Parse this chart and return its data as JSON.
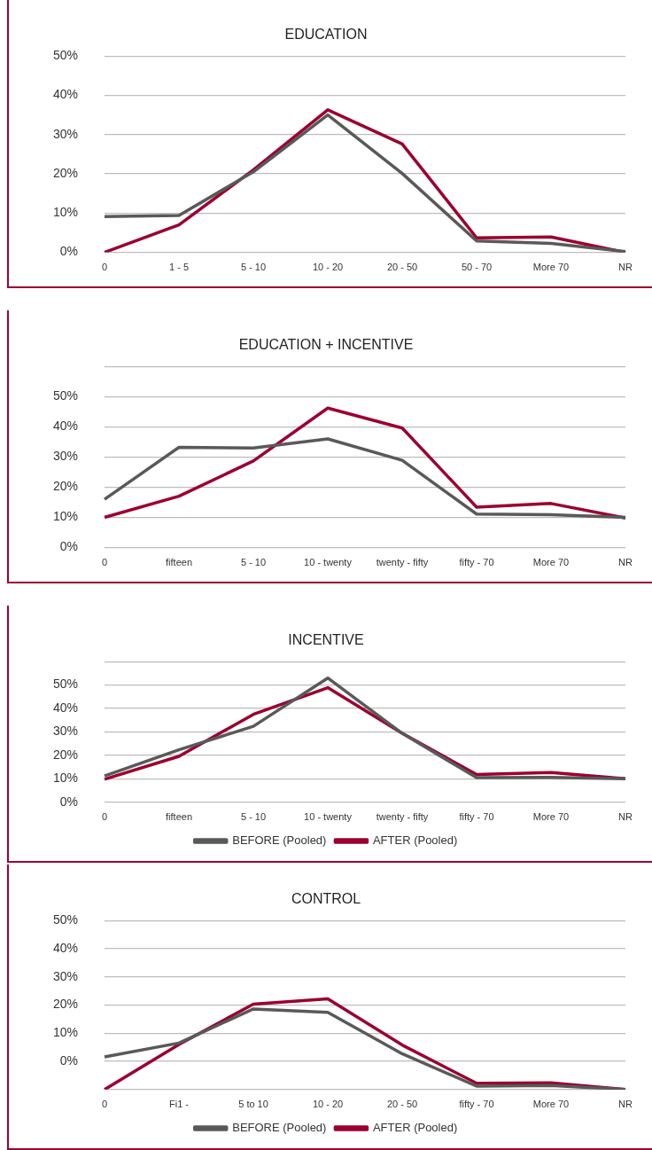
{
  "chart_data": [
    {
      "type": "line",
      "title": "EDUCATION",
      "categories": [
        "0",
        "1 - 5",
        "5 - 10",
        "10 - 20",
        "20 - 50",
        "50 - 70",
        "More 70",
        "NR"
      ],
      "series": [
        {
          "color": "#595959",
          "values": [
            9.1,
            9.4,
            20.5,
            35,
            20.1,
            2.9,
            2.3,
            0.2
          ]
        },
        {
          "color": "#9b0030",
          "values": [
            0,
            7,
            21,
            36.3,
            27.6,
            3.7,
            3.9,
            0
          ]
        }
      ],
      "ylim": [
        0,
        50
      ],
      "yticks": [
        {
          "value": 0,
          "label": "0%"
        },
        {
          "value": 10,
          "label": "10%"
        },
        {
          "value": 20,
          "label": "20%"
        },
        {
          "value": 30,
          "label": "30%"
        },
        {
          "value": 40,
          "label": "40%"
        },
        {
          "value": 50,
          "label": "50%"
        }
      ],
      "grid": "y",
      "legend": false,
      "marker": "none",
      "line_style": "solid"
    },
    {
      "type": "line",
      "title": "EDUCATION + INCENTIVE",
      "categories": [
        "0",
        "fifteen",
        "5 - 10",
        "10 - twenty",
        "twenty - fifty",
        "fifty - 70",
        "More 70",
        "NR"
      ],
      "series": [
        {
          "color": "#595959",
          "values": [
            16,
            33.2,
            33,
            36,
            28.9,
            11.1,
            10.9,
            10
          ]
        },
        {
          "color": "#9b0030",
          "values": [
            10,
            17,
            28.7,
            46.2,
            39.6,
            13.4,
            14.6,
            9.8
          ]
        }
      ],
      "ylim": [
        0,
        60
      ],
      "yticks": [
        {
          "value": 0,
          "label": "0%"
        },
        {
          "value": 10,
          "label": "10%"
        },
        {
          "value": 20,
          "label": "20%"
        },
        {
          "value": 30,
          "label": "30%"
        },
        {
          "value": 40,
          "label": "40%"
        },
        {
          "value": 50,
          "label": "50%"
        },
        {
          "value": 60,
          "label": null
        }
      ],
      "grid": "y",
      "legend": false,
      "marker": "none",
      "line_style": "solid"
    },
    {
      "type": "line",
      "title": "INCENTIVE",
      "categories": [
        "0",
        "fifteen",
        "5 - 10",
        "10 - twenty",
        "twenty - fifty",
        "fifty - 70",
        "More 70",
        "NR"
      ],
      "series": [
        {
          "name": "BEFORE (Pooled)",
          "color": "#595959",
          "values": [
            11.2,
            22.4,
            32.4,
            53,
            29.4,
            10.5,
            10.6,
            10
          ]
        },
        {
          "name": "AFTER (Pooled)",
          "color": "#9b0030",
          "values": [
            9.8,
            19.6,
            37.5,
            48.9,
            29.4,
            11.8,
            12.7,
            10
          ]
        }
      ],
      "ylim": [
        0,
        60
      ],
      "yticks": [
        {
          "value": 0,
          "label": "0%"
        },
        {
          "value": 10,
          "label": "10%"
        },
        {
          "value": 20,
          "label": "20%"
        },
        {
          "value": 30,
          "label": "30%"
        },
        {
          "value": 40,
          "label": "40%"
        },
        {
          "value": 50,
          "label": "50%"
        },
        {
          "value": 60,
          "label": null
        }
      ],
      "grid": "y",
      "legend": "bottom",
      "marker": "none",
      "line_style": "solid"
    },
    {
      "type": "line",
      "title": "CONTROL",
      "categories": [
        "0",
        "Fi1 -",
        "5 to 10",
        "10 - 20",
        "20 - 50",
        "fifty - 70",
        "More 70",
        "NR"
      ],
      "series": [
        {
          "name": "BEFORE (Pooled)",
          "color": "#595959",
          "values": [
            1.6,
            6.5,
            18.6,
            17.4,
            2.7,
            -8.8,
            -8.6,
            -10
          ]
        },
        {
          "name": "AFTER (Pooled)",
          "color": "#9b0030",
          "values": [
            -10,
            6,
            20.3,
            22.2,
            5.8,
            -7.8,
            -7.6,
            -10
          ]
        }
      ],
      "ylim": [
        -10,
        50
      ],
      "yticks": [
        {
          "value": -10,
          "label": null
        },
        {
          "value": 0,
          "label": "0%"
        },
        {
          "value": 10,
          "label": "10%"
        },
        {
          "value": 20,
          "label": "20%"
        },
        {
          "value": 30,
          "label": "30%"
        },
        {
          "value": 40,
          "label": "40%"
        },
        {
          "value": 50,
          "label": "50%"
        }
      ],
      "grid": "y",
      "legend": "bottom",
      "marker": "none",
      "line_style": "solid"
    }
  ]
}
